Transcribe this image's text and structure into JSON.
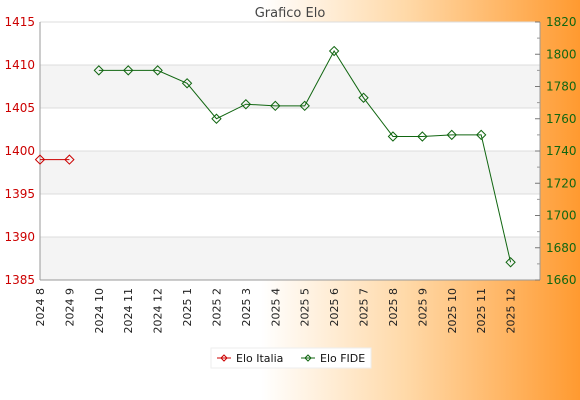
{
  "chart_data": {
    "type": "line",
    "title": "Grafico Elo",
    "categories": [
      "2024 8",
      "2024 9",
      "2024 10",
      "2024 11",
      "2024 12",
      "2025 1",
      "2025 2",
      "2025 3",
      "2025 4",
      "2025 5",
      "2025 6",
      "2025 7",
      "2025 8",
      "2025 9",
      "2025 10",
      "2025 11",
      "2025 12"
    ],
    "y_left": {
      "min": 1385,
      "max": 1415,
      "ticks": [
        1385,
        1390,
        1395,
        1400,
        1405,
        1410,
        1415
      ]
    },
    "y_right": {
      "min": 1660,
      "max": 1820,
      "ticks": [
        1660,
        1680,
        1700,
        1720,
        1740,
        1760,
        1780,
        1800,
        1820
      ]
    },
    "series": [
      {
        "name": "Elo Italia",
        "axis": "left",
        "color": "#cc0000",
        "values": [
          1399,
          1399,
          null,
          null,
          null,
          null,
          null,
          null,
          null,
          null,
          null,
          null,
          null,
          null,
          null,
          null,
          null
        ]
      },
      {
        "name": "Elo FIDE",
        "axis": "right",
        "color": "#116611",
        "values": [
          null,
          null,
          1790,
          1790,
          1790,
          1782,
          1760,
          1769,
          1768,
          1768,
          1802,
          1773,
          1749,
          1749,
          1750,
          1750,
          1671
        ]
      }
    ],
    "grid": true,
    "legend_position": "bottom-center"
  }
}
